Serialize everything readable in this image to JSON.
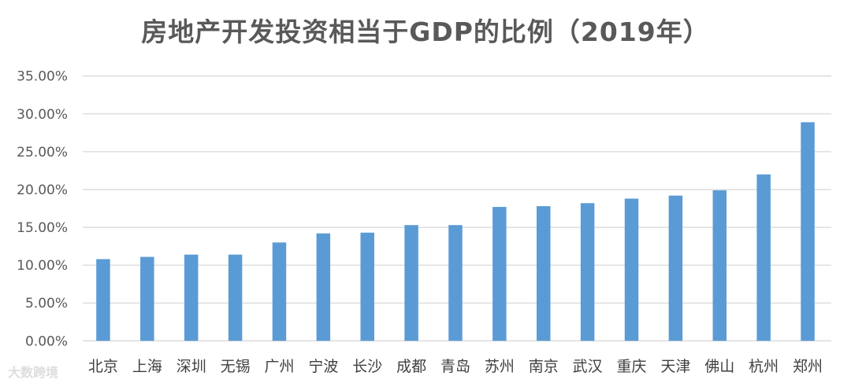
{
  "chart_data": {
    "type": "bar",
    "title": "房地产开发投资相当于GDP的比例（2019年）",
    "xlabel": "",
    "ylabel": "",
    "ylim": [
      0,
      35
    ],
    "yticks": [
      "0.00%",
      "5.00%",
      "10.00%",
      "15.00%",
      "20.00%",
      "25.00%",
      "30.00%",
      "35.00%"
    ],
    "grid": true,
    "categories": [
      "北京",
      "上海",
      "深圳",
      "无锡",
      "广州",
      "宁波",
      "长沙",
      "成都",
      "青岛",
      "苏州",
      "南京",
      "武汉",
      "重庆",
      "天津",
      "佛山",
      "杭州",
      "郑州"
    ],
    "values": [
      10.8,
      11.1,
      11.4,
      11.4,
      13.0,
      14.2,
      14.3,
      15.3,
      15.3,
      17.7,
      17.8,
      18.2,
      18.8,
      19.2,
      19.9,
      22.0,
      28.9
    ],
    "bar_color": "#5B9BD5"
  },
  "watermark": "大数跨境"
}
